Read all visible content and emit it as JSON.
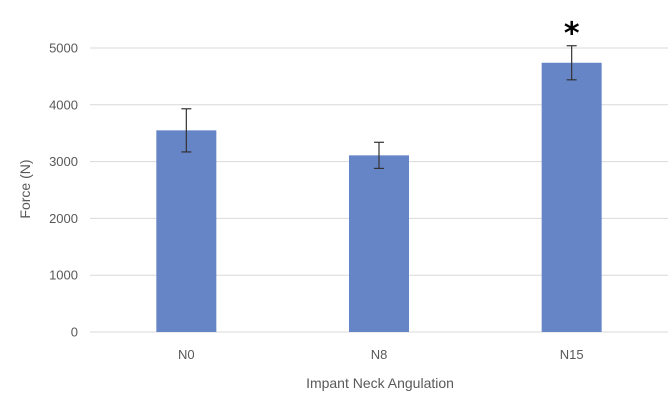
{
  "chart_data": {
    "type": "bar",
    "categories": [
      "N0",
      "N8",
      "N15"
    ],
    "values": [
      3550,
      3110,
      4740
    ],
    "error": [
      380,
      230,
      300
    ],
    "title": "",
    "xlabel": "Impant Neck Angulation",
    "ylabel": "Force (N)",
    "ylim": [
      0,
      5000
    ],
    "yticks": [
      0,
      1000,
      2000,
      3000,
      4000,
      5000
    ],
    "grid": true,
    "legend": "none",
    "annotations": [
      {
        "category": "N15",
        "text": "*"
      }
    ],
    "colors": {
      "bar": "#6585C6",
      "grid": "#D9D9D9",
      "text": "#595959",
      "error_bar": "#333333"
    }
  }
}
